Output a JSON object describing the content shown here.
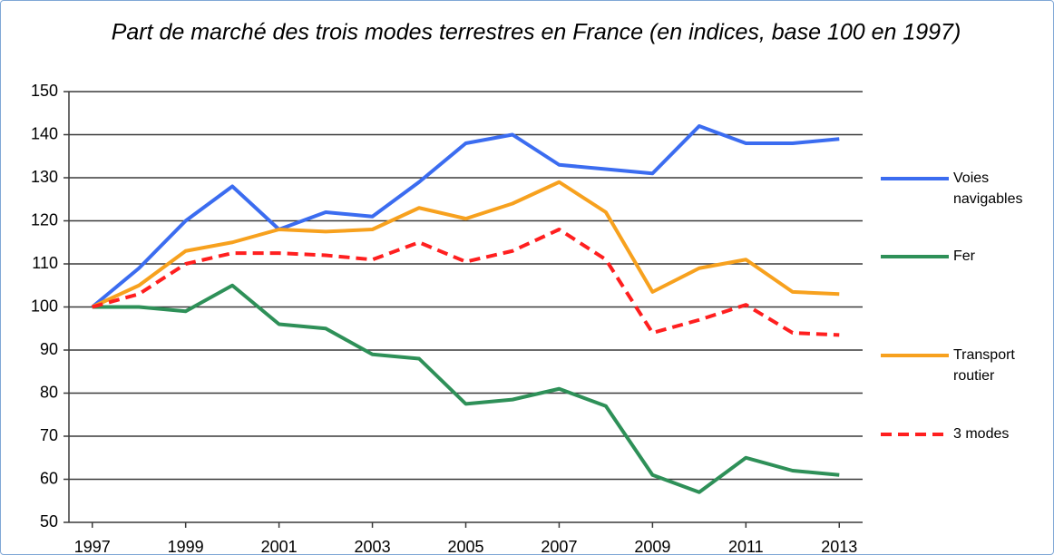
{
  "chart_data": {
    "type": "line",
    "title": "Part de marché des trois modes terrestres en France (en indices, base 100 en 1997)",
    "x": [
      1997,
      1998,
      1999,
      2000,
      2001,
      2002,
      2003,
      2004,
      2005,
      2006,
      2007,
      2008,
      2009,
      2010,
      2011,
      2012,
      2013
    ],
    "xlim": [
      1996.5,
      2013.5
    ],
    "xticks": [
      1997,
      1999,
      2001,
      2003,
      2005,
      2007,
      2009,
      2011,
      2013
    ],
    "ylim": [
      50,
      150
    ],
    "yticks": [
      50,
      60,
      70,
      80,
      90,
      100,
      110,
      120,
      130,
      140,
      150
    ],
    "grid": true,
    "legend": "right",
    "series": [
      {
        "name": "Voies navigables",
        "color": "#3b6cf0",
        "linestyle": "solid",
        "values": [
          100,
          109,
          120,
          128,
          118,
          122,
          121,
          129,
          138,
          140,
          133,
          132,
          131,
          142,
          138,
          138,
          139
        ]
      },
      {
        "name": "Fer",
        "color": "#2e9058",
        "linestyle": "solid",
        "values": [
          100,
          100,
          99,
          105,
          96,
          95,
          89,
          88,
          77.5,
          78.5,
          81,
          77,
          61,
          57,
          65,
          62,
          61
        ]
      },
      {
        "name": "Transport routier",
        "color": "#f7a11e",
        "linestyle": "solid",
        "values": [
          100,
          105,
          113,
          115,
          118,
          117.5,
          118,
          123,
          120.5,
          124,
          129,
          122,
          103.5,
          109,
          111,
          103.5,
          103
        ]
      },
      {
        "name": "3 modes",
        "color": "#ff1f1f",
        "linestyle": "dashed",
        "values": [
          100,
          103,
          110,
          112.5,
          112.5,
          112,
          111,
          115,
          110.5,
          113,
          118,
          111,
          94,
          97,
          100.5,
          94,
          93.5
        ]
      }
    ]
  }
}
